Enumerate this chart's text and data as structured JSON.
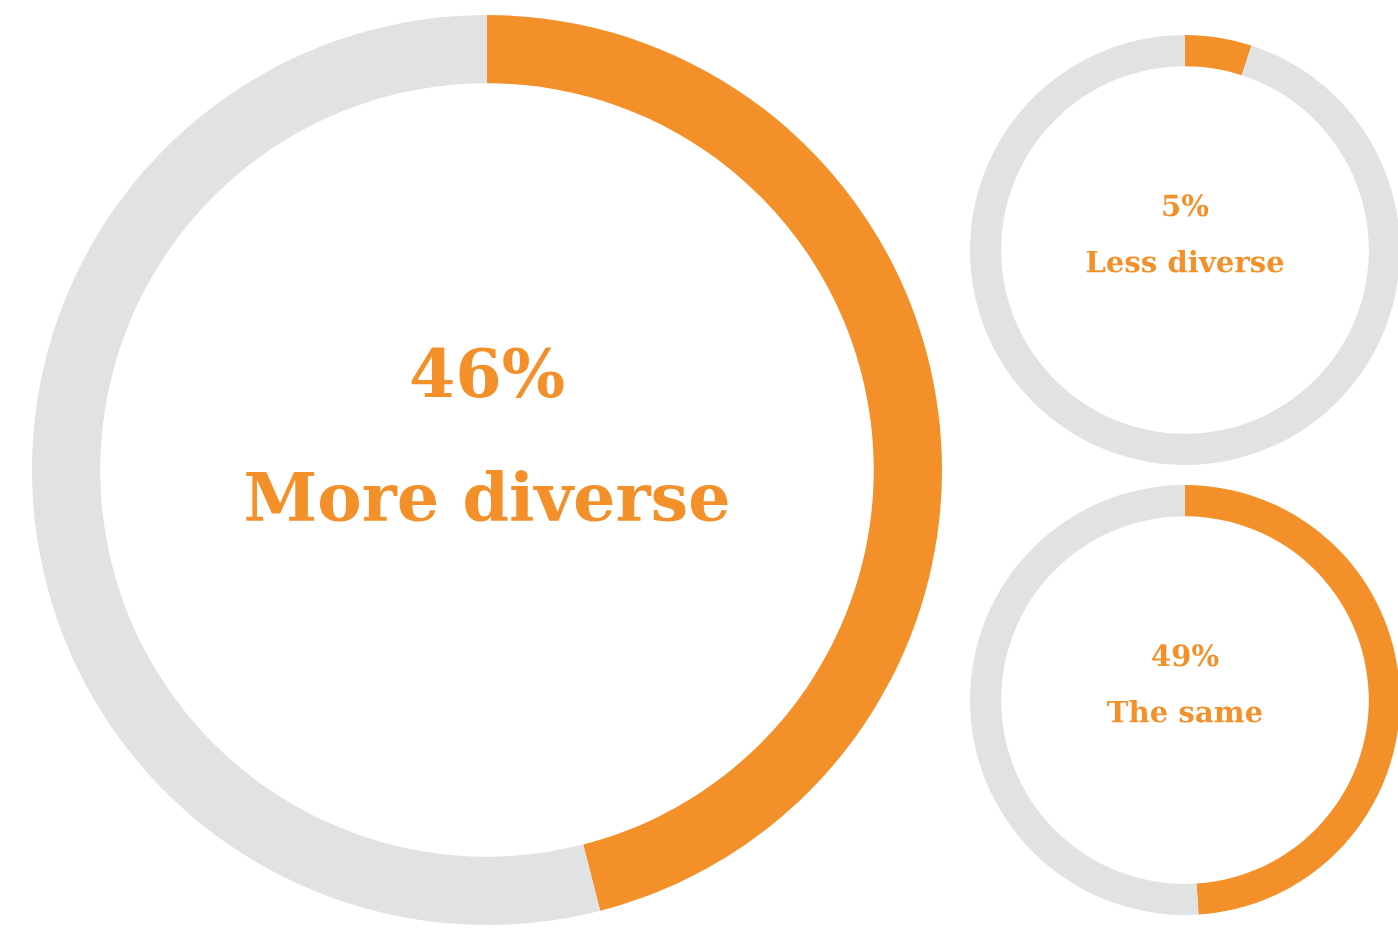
{
  "chart_data": [
    {
      "type": "donut",
      "title": "More diverse",
      "annotations": [
        "46%"
      ],
      "categories": [
        null,
        null
      ],
      "values": [
        46,
        54
      ],
      "colors": [
        "#f39029",
        "#e1e2e4"
      ]
    },
    {
      "type": "donut",
      "title": "Less diverse",
      "annotations": [
        "5%"
      ],
      "categories": [
        null,
        null
      ],
      "values": [
        5,
        95
      ],
      "colors": [
        "#f39029",
        "#e1e2e4"
      ]
    },
    {
      "type": "donut",
      "title": "The same",
      "annotations": [
        "49%"
      ],
      "categories": [
        null,
        null
      ],
      "values": [
        49,
        51
      ],
      "colors": [
        "#f39029",
        "#e1e2e4"
      ]
    }
  ]
}
